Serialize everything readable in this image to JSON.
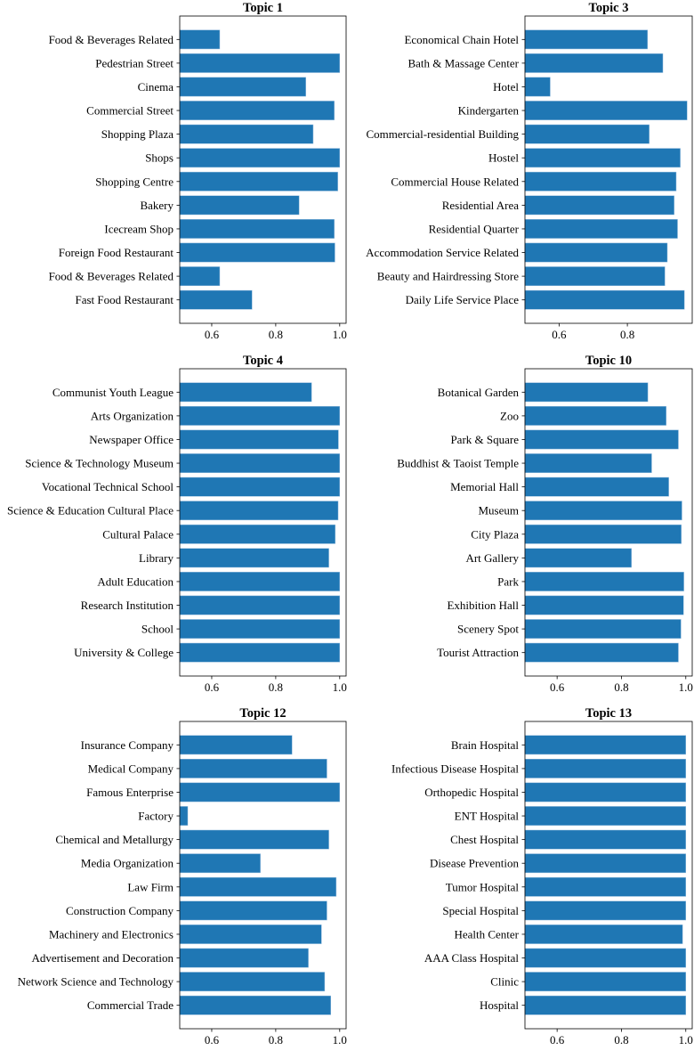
{
  "chart_data": [
    {
      "type": "bar",
      "orientation": "horizontal",
      "title": "Topic 1",
      "xlim": [
        0.5,
        1.02
      ],
      "xticks": [
        "0.6",
        "0.8",
        "1.0"
      ],
      "categories": [
        "Food & Beverages Related",
        "Pedestrian Street",
        "Cinema",
        "Commercial Street",
        "Shopping Plaza",
        "Shops",
        "Shopping Centre",
        "Bakery",
        "Icecream Shop",
        "Foreign Food Restaurant",
        "Food & Beverages Related",
        "Fast Food Restaurant"
      ],
      "values": [
        0.625,
        1.0,
        0.894,
        0.983,
        0.917,
        1.0,
        0.994,
        0.873,
        0.983,
        0.985,
        0.625,
        0.726
      ],
      "color": "#1f77b4"
    },
    {
      "type": "bar",
      "orientation": "horizontal",
      "title": "Topic 3",
      "xlim": [
        0.5,
        0.99
      ],
      "xticks": [
        "0.6",
        "0.8"
      ],
      "categories": [
        "Economical Chain Hotel",
        "Bath & Massage Center",
        "Hotel",
        "Kindergarten",
        "Commercial-residential Building",
        "Hostel",
        "Commercial House Related",
        "Residential Area",
        "Residential Quarter",
        "Accommodation Service Related",
        "Beauty and Hairdressing Store",
        "Daily Life Service Place"
      ],
      "values": [
        0.859,
        0.904,
        0.574,
        0.975,
        0.864,
        0.955,
        0.943,
        0.937,
        0.947,
        0.917,
        0.91,
        0.967
      ],
      "color": "#1f77b4"
    },
    {
      "type": "bar",
      "orientation": "horizontal",
      "title": "Topic 4",
      "xlim": [
        0.5,
        1.02
      ],
      "xticks": [
        "0.6",
        "0.8",
        "1.0"
      ],
      "categories": [
        "Communist Youth League",
        "Arts Organization",
        "Newspaper Office",
        "Science & Technology Museum",
        "Vocational Technical School",
        "Science & Education Cultural Place",
        "Cultural Palace",
        "Library",
        "Adult Education",
        "Research Institution",
        "School",
        "University & College"
      ],
      "values": [
        0.912,
        1.0,
        0.996,
        1.0,
        1.0,
        0.995,
        0.986,
        0.966,
        1.0,
        1.0,
        1.0,
        1.0
      ],
      "color": "#1f77b4"
    },
    {
      "type": "bar",
      "orientation": "horizontal",
      "title": "Topic 10",
      "xlim": [
        0.5,
        1.02
      ],
      "xticks": [
        "0.6",
        "0.8",
        "1.0"
      ],
      "categories": [
        "Botanical Garden",
        "Zoo",
        "Park & Square",
        "Buddhist & Taoist Temple",
        "Memorial Hall",
        "Museum",
        "City Plaza",
        "Art Gallery",
        "Park",
        "Exhibition Hall",
        "Scenery Spot",
        "Tourist Attraction"
      ],
      "values": [
        0.882,
        0.939,
        0.977,
        0.894,
        0.947,
        0.988,
        0.986,
        0.831,
        0.994,
        0.993,
        0.985,
        0.977
      ],
      "color": "#1f77b4"
    },
    {
      "type": "bar",
      "orientation": "horizontal",
      "title": "Topic 12",
      "xlim": [
        0.5,
        1.02
      ],
      "xticks": [
        "0.6",
        "0.8",
        "1.0"
      ],
      "categories": [
        "Insurance Company",
        "Medical Company",
        "Famous Enterprise",
        "Factory",
        "Chemical and Metallurgy",
        "Media Organization",
        "Law Firm",
        "Construction Company",
        "Machinery and Electronics",
        "Advertisement and Decoration",
        "Network Science and Technology",
        "Commercial Trade"
      ],
      "values": [
        0.851,
        0.96,
        1.0,
        0.525,
        0.966,
        0.752,
        0.989,
        0.96,
        0.943,
        0.902,
        0.953,
        0.972
      ],
      "color": "#1f77b4"
    },
    {
      "type": "bar",
      "orientation": "horizontal",
      "title": "Topic 13",
      "xlim": [
        0.5,
        1.02
      ],
      "xticks": [
        "0.6",
        "0.8",
        "1.0"
      ],
      "categories": [
        "Brain Hospital",
        "Infectious Disease Hospital",
        "Orthopedic Hospital",
        "ENT Hospital",
        "Chest Hospital",
        "Disease Prevention",
        "Tumor Hospital",
        "Special Hospital",
        "Health Center",
        "AAA Class Hospital",
        "Clinic",
        "Hospital"
      ],
      "values": [
        1.0,
        1.0,
        1.0,
        1.0,
        1.0,
        1.0,
        1.0,
        1.0,
        0.99,
        1.0,
        1.0,
        1.0
      ],
      "color": "#1f77b4"
    }
  ]
}
